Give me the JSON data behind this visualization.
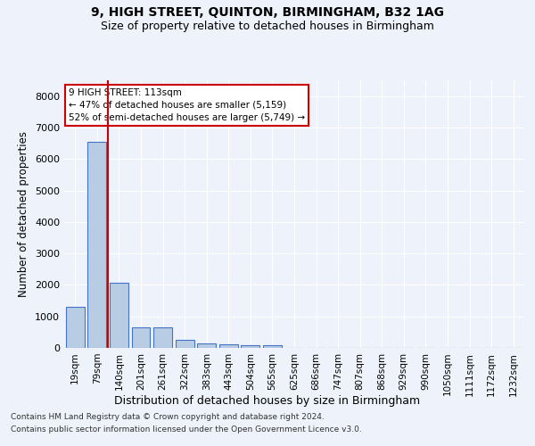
{
  "title": "9, HIGH STREET, QUINTON, BIRMINGHAM, B32 1AG",
  "subtitle": "Size of property relative to detached houses in Birmingham",
  "xlabel": "Distribution of detached houses by size in Birmingham",
  "ylabel": "Number of detached properties",
  "footnote1": "Contains HM Land Registry data © Crown copyright and database right 2024.",
  "footnote2": "Contains public sector information licensed under the Open Government Licence v3.0.",
  "property_label": "9 HIGH STREET: 113sqm",
  "annotation_line1": "← 47% of detached houses are smaller (5,159)",
  "annotation_line2": "52% of semi-detached houses are larger (5,749) →",
  "bar_color": "#b8cce4",
  "bar_edge_color": "#4472c4",
  "marker_color": "#cc0000",
  "background_color": "#eef2fb",
  "grid_color": "#ffffff",
  "categories": [
    "19sqm",
    "79sqm",
    "140sqm",
    "201sqm",
    "261sqm",
    "322sqm",
    "383sqm",
    "443sqm",
    "504sqm",
    "565sqm",
    "625sqm",
    "686sqm",
    "747sqm",
    "807sqm",
    "868sqm",
    "929sqm",
    "990sqm",
    "1050sqm",
    "1111sqm",
    "1172sqm",
    "1232sqm"
  ],
  "values": [
    1300,
    6550,
    2075,
    640,
    640,
    260,
    140,
    110,
    85,
    85,
    0,
    0,
    0,
    0,
    0,
    0,
    0,
    0,
    0,
    0,
    0
  ],
  "marker_bin_index": 1,
  "ylim": [
    0,
    8500
  ],
  "yticks": [
    0,
    1000,
    2000,
    3000,
    4000,
    5000,
    6000,
    7000,
    8000
  ],
  "title_fontsize": 10,
  "subtitle_fontsize": 9,
  "ylabel_fontsize": 8.5,
  "xlabel_fontsize": 9,
  "tick_fontsize": 8,
  "xtick_fontsize": 7.5,
  "footnote_fontsize": 6.5
}
